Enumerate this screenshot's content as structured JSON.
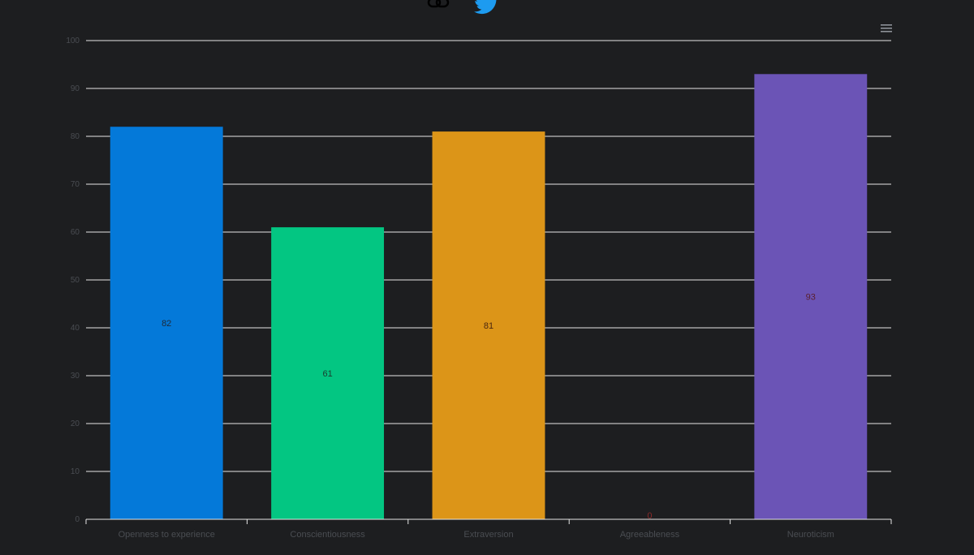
{
  "menu": {
    "icon": "hamburger-menu-icon"
  },
  "share": {
    "icons": [
      "link-icon",
      "twitter-bird-icon"
    ],
    "twitter_color": "#1d9bf0"
  },
  "chart_data": {
    "type": "bar",
    "categories": [
      "Openness to experience",
      "Conscientiousness",
      "Extraversion",
      "Agreeableness",
      "Neuroticism"
    ],
    "values": [
      82,
      61,
      81,
      0,
      93
    ],
    "colors": [
      "#0479d9",
      "#03c682",
      "#dc9518",
      "#ff5b5b",
      "#6b54b6"
    ],
    "label_colors": [
      "#1d2a3a",
      "#1b3b2d",
      "#4a2710",
      "#8b2a2a",
      "#5a1f2d"
    ],
    "ylim": [
      0,
      100
    ],
    "yticks": [
      0,
      10,
      20,
      30,
      40,
      50,
      60,
      70,
      80,
      90,
      100
    ],
    "grid": true,
    "data_labels": true,
    "background": "#1d1e20",
    "grid_color": "#e6e6e6",
    "axis_text_color": "#4a4d52"
  }
}
